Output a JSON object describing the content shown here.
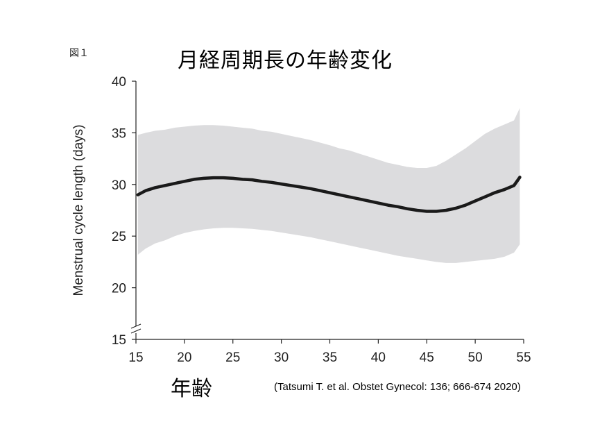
{
  "figure_label": "図１",
  "chart_data": {
    "type": "line",
    "title": "月経周期長の年齢変化",
    "xlabel": "年齢",
    "ylabel": "Menstrual cycle length (days)",
    "xlim": [
      15,
      55
    ],
    "ylim": [
      15,
      40
    ],
    "x_ticks": [
      15,
      20,
      25,
      30,
      35,
      40,
      45,
      50,
      55
    ],
    "y_ticks": [
      15,
      20,
      25,
      30,
      35,
      40
    ],
    "axis_break_on_y": true,
    "grid": false,
    "legend": "none",
    "colors": {
      "line": "#1a1a1a",
      "band": "#dcdcde"
    },
    "series": [
      {
        "kind": "line",
        "x": [
          15.2,
          16,
          17,
          18,
          19,
          20,
          21,
          22,
          23,
          24,
          25,
          26,
          27,
          28,
          29,
          30,
          31,
          32,
          33,
          34,
          35,
          36,
          37,
          38,
          39,
          40,
          41,
          42,
          43,
          44,
          45,
          46,
          47,
          48,
          49,
          50,
          51,
          52,
          53,
          54,
          54.6
        ],
        "y": [
          29.0,
          29.4,
          29.7,
          29.9,
          30.1,
          30.3,
          30.5,
          30.6,
          30.65,
          30.65,
          30.6,
          30.5,
          30.45,
          30.3,
          30.2,
          30.05,
          29.9,
          29.75,
          29.6,
          29.4,
          29.2,
          29.0,
          28.8,
          28.6,
          28.4,
          28.2,
          28.0,
          27.85,
          27.65,
          27.5,
          27.4,
          27.4,
          27.5,
          27.7,
          28.0,
          28.4,
          28.8,
          29.2,
          29.5,
          29.9,
          30.7
        ]
      },
      {
        "kind": "band",
        "x": [
          15.2,
          16,
          17,
          18,
          19,
          20,
          21,
          22,
          23,
          24,
          25,
          26,
          27,
          28,
          29,
          30,
          31,
          32,
          33,
          34,
          35,
          36,
          37,
          38,
          39,
          40,
          41,
          42,
          43,
          44,
          45,
          46,
          47,
          48,
          49,
          50,
          51,
          52,
          53,
          54,
          54.6
        ],
        "upper": [
          34.8,
          35.0,
          35.2,
          35.3,
          35.5,
          35.6,
          35.7,
          35.75,
          35.75,
          35.7,
          35.6,
          35.5,
          35.4,
          35.2,
          35.1,
          34.9,
          34.7,
          34.5,
          34.3,
          34.05,
          33.8,
          33.5,
          33.3,
          33.0,
          32.7,
          32.4,
          32.1,
          31.9,
          31.7,
          31.6,
          31.6,
          31.8,
          32.3,
          32.9,
          33.5,
          34.2,
          34.9,
          35.4,
          35.8,
          36.2,
          37.4
        ],
        "lower": [
          23.2,
          23.8,
          24.3,
          24.6,
          25.0,
          25.3,
          25.5,
          25.65,
          25.75,
          25.8,
          25.8,
          25.75,
          25.7,
          25.6,
          25.5,
          25.35,
          25.2,
          25.05,
          24.9,
          24.7,
          24.5,
          24.3,
          24.1,
          23.9,
          23.7,
          23.5,
          23.3,
          23.1,
          22.95,
          22.8,
          22.65,
          22.5,
          22.4,
          22.4,
          22.5,
          22.6,
          22.7,
          22.8,
          23.0,
          23.4,
          24.2
        ]
      }
    ]
  },
  "citation": "(Tatsumi T. et al. Obstet Gynecol: 136; 666-674 2020)"
}
